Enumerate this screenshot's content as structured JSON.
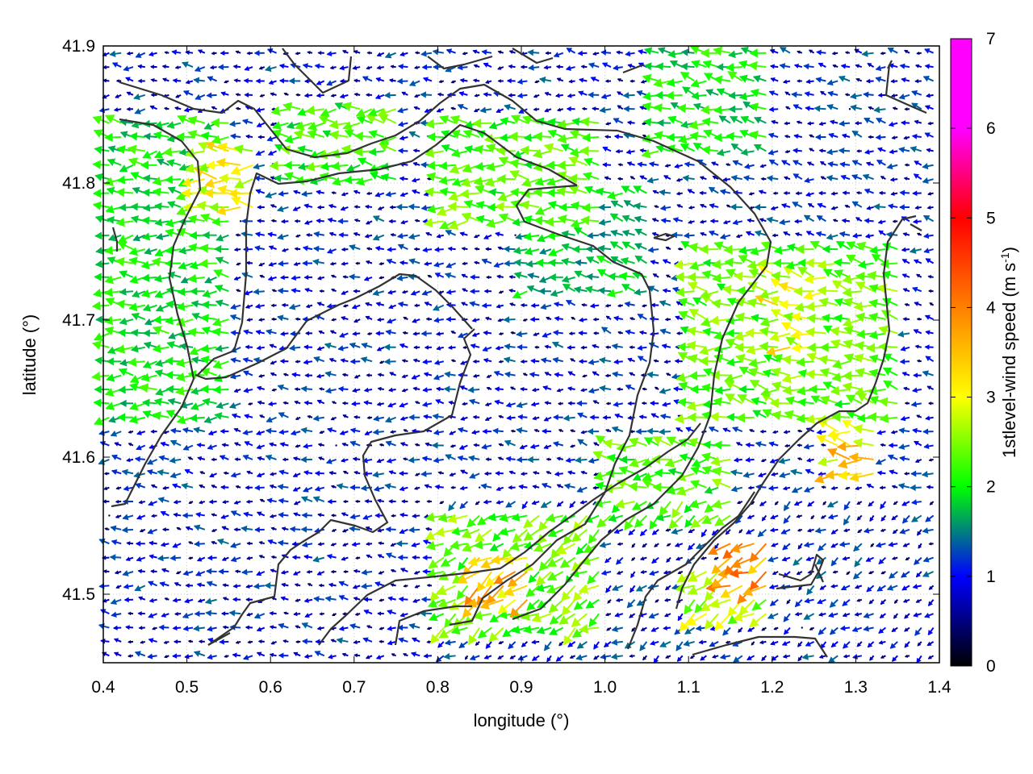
{
  "chart_data": {
    "type": "vector-field",
    "title": "",
    "xlabel": "longitude (°)",
    "ylabel": "latitude (°)",
    "xlim": [
      0.4,
      1.4
    ],
    "ylim": [
      41.45,
      41.9
    ],
    "xticks": [
      "0.4",
      "0.5",
      "0.6",
      "0.7",
      "0.8",
      "0.9",
      "1.0",
      "1.1",
      "1.2",
      "1.3",
      "1.4"
    ],
    "yticks": [
      "41.5",
      "41.6",
      "41.7",
      "41.8",
      "41.9"
    ],
    "grid": true,
    "colorbar": {
      "label_main": "1stlevel-wind speed (m s",
      "label_sup": "-1",
      "label_close": ")",
      "range": [
        0,
        7
      ],
      "ticks": [
        "0",
        "1",
        "2",
        "3",
        "4",
        "5",
        "6",
        "7"
      ],
      "colormap": [
        "#000000",
        "#0000ff",
        "#00ff00",
        "#ffff00",
        "#ff8000",
        "#ff0000",
        "#ff00ff"
      ]
    },
    "predominant_direction": "east-to-west",
    "wind_speed_regions": [
      {
        "lon": [
          0.4,
          0.55
        ],
        "lat": [
          41.62,
          41.85
        ],
        "speed": 2.0
      },
      {
        "lon": [
          0.52,
          0.58
        ],
        "lat": [
          41.78,
          41.83
        ],
        "speed": 3.0
      },
      {
        "lon": [
          0.62,
          0.75
        ],
        "lat": [
          41.8,
          41.86
        ],
        "speed": 2.2
      },
      {
        "lon": [
          0.8,
          1.0
        ],
        "lat": [
          41.77,
          41.85
        ],
        "speed": 2.3
      },
      {
        "lon": [
          0.9,
          1.05
        ],
        "lat": [
          41.72,
          41.8
        ],
        "speed": 1.8
      },
      {
        "lon": [
          1.05,
          1.2
        ],
        "lat": [
          41.82,
          41.9
        ],
        "speed": 2.0
      },
      {
        "lon": [
          1.1,
          1.35
        ],
        "lat": [
          41.62,
          41.76
        ],
        "speed": 2.4
      },
      {
        "lon": [
          1.2,
          1.27
        ],
        "lat": [
          41.68,
          41.74
        ],
        "speed": 3.0
      },
      {
        "lon": [
          0.8,
          1.0
        ],
        "lat": [
          41.47,
          41.56
        ],
        "speed": 2.4
      },
      {
        "lon": [
          0.85,
          0.92
        ],
        "lat": [
          41.49,
          41.53
        ],
        "speed": 3.5
      },
      {
        "lon": [
          1.0,
          1.15
        ],
        "lat": [
          41.55,
          41.61
        ],
        "speed": 2.3
      },
      {
        "lon": [
          1.15,
          1.2
        ],
        "lat": [
          41.5,
          41.54
        ],
        "speed": 3.8
      },
      {
        "lon": [
          1.27,
          1.33
        ],
        "lat": [
          41.58,
          41.62
        ],
        "speed": 3.3
      },
      {
        "lon": [
          1.1,
          1.2
        ],
        "lat": [
          41.48,
          41.52
        ],
        "speed": 2.8
      }
    ],
    "background_speed": 1.0
  }
}
